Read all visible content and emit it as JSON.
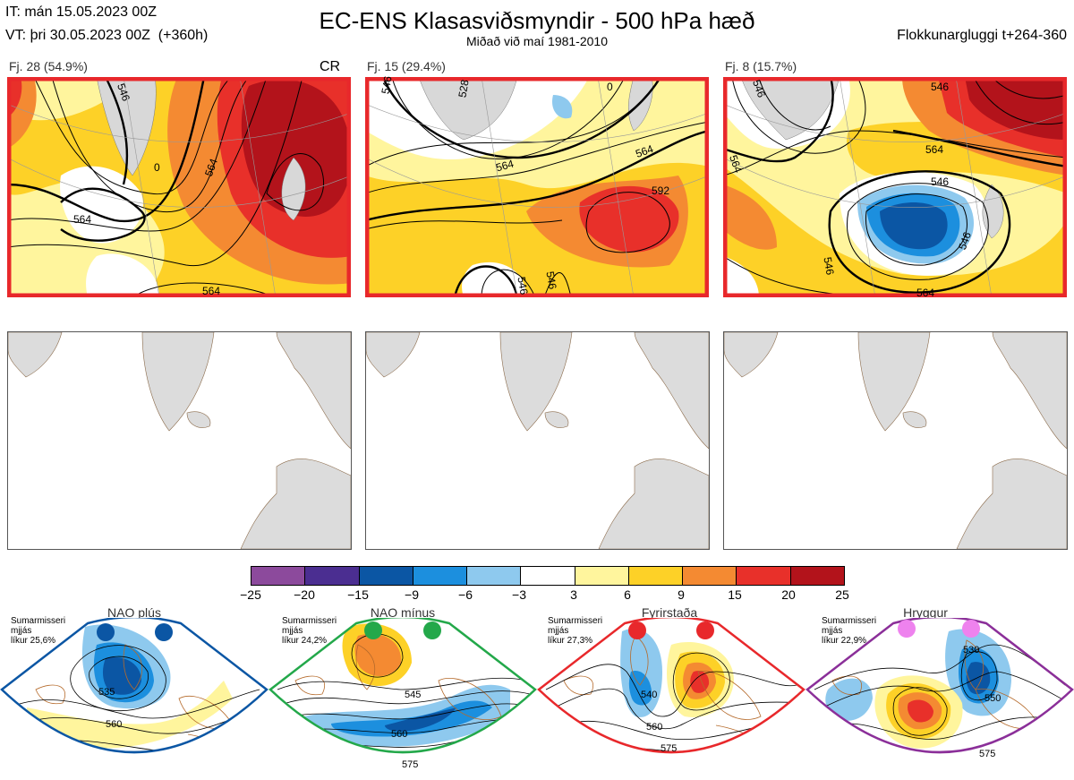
{
  "header": {
    "initial_time": "IT: mán 15.05.2023 00Z",
    "valid_time": "VT: þri 30.05.2023 00Z  (+360h)",
    "title": "EC-ENS Klasasviðsmyndir - 500 hPa hæð",
    "subtitle": "Miðað við maí 1981-2010",
    "window": "Flokkunargluggi t+264-360"
  },
  "clusters": [
    {
      "label": "Fj. 28 (54.9%)",
      "tag": "CR",
      "border_color": "#e8282b",
      "contours": [
        "564",
        "564",
        "564",
        "546",
        "0"
      ]
    },
    {
      "label": "Fj. 15 (29.4%)",
      "tag": "",
      "border_color": "#e8282b",
      "contours": [
        "546",
        "564",
        "564",
        "592",
        "546",
        "546",
        "528",
        "0"
      ]
    },
    {
      "label": "Fj. 8 (15.7%)",
      "tag": "",
      "border_color": "#e8282b",
      "contours": [
        "546",
        "546",
        "564",
        "564",
        "546",
        "546",
        "564",
        "546"
      ]
    }
  ],
  "colorbar": {
    "ticks": [
      "−25",
      "−20",
      "−15",
      "−9",
      "−6",
      "−3",
      "3",
      "6",
      "9",
      "15",
      "20",
      "25"
    ],
    "colors": [
      "#8c4a9c",
      "#4b2e91",
      "#0b56a4",
      "#1c8fde",
      "#8ec9ee",
      "#ffffff",
      "#fff59d",
      "#fdd127",
      "#f48a32",
      "#e8302a",
      "#b3131b"
    ]
  },
  "regimes": [
    {
      "name": "NAO plús",
      "note_lines": [
        "Sumarmisseri",
        "mjjás",
        "líkur 25,6%"
      ],
      "color": "#0b56a4",
      "contours": [
        "535",
        "560"
      ]
    },
    {
      "name": "NAO mínus",
      "note_lines": [
        "Sumarmisseri",
        "mjjás",
        "líkur 24,2%"
      ],
      "color": "#23a84a",
      "contours": [
        "545",
        "560",
        "575"
      ]
    },
    {
      "name": "Fyrirstaða",
      "note_lines": [
        "Sumarmisseri",
        "mjjás",
        "líkur 27,3%"
      ],
      "color": "#e8282b",
      "contours": [
        "540",
        "560",
        "575"
      ]
    },
    {
      "name": "Hryggur",
      "note_lines": [
        "Sumarmisseri",
        "mjjás",
        "líkur 22,9%"
      ],
      "color": "#8b2f99",
      "contours": [
        "530",
        "550",
        "575"
      ]
    }
  ]
}
